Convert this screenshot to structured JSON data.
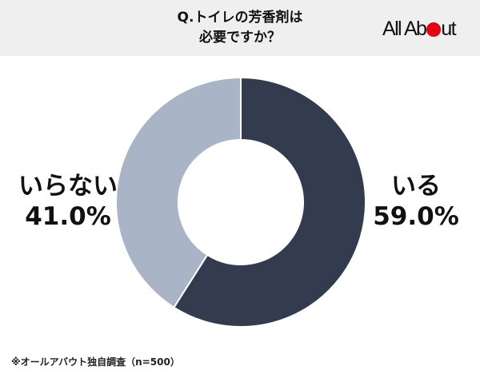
{
  "header": {
    "title_line1": "Q.トイレの芳香剤は",
    "title_line2": "必要ですか？",
    "logo_text_a": "All Ab",
    "logo_text_b": "ut"
  },
  "chart_data": {
    "type": "pie",
    "donut": true,
    "title": "Q.トイレの芳香剤は必要ですか？",
    "categories": [
      "いる",
      "いらない"
    ],
    "values": [
      59.0,
      41.0
    ],
    "value_labels": [
      "59.0%",
      "41.0%"
    ],
    "colors": [
      "#323c4e",
      "#a9b5c7"
    ]
  },
  "labels": {
    "right_name": "いる",
    "right_value": "59.0%",
    "left_name": "いらない",
    "left_value": "41.0%"
  },
  "footnote": "※オールアバウト独自調査（n=500）",
  "colors": {
    "header_bg": "#efefef",
    "logo_accent": "#e60012"
  }
}
